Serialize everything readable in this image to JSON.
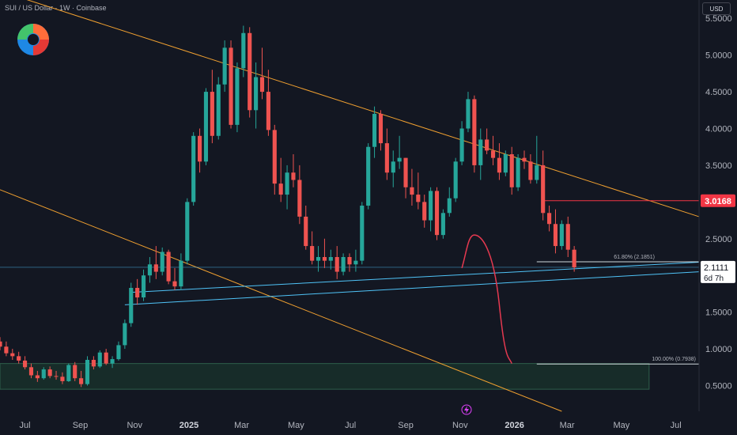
{
  "header": {
    "symbol": "SUI / US Dollar · 1W · Coinbase"
  },
  "currency_button": "USD",
  "logo_icon": "sui-logo-icon",
  "event_icon": "lightning-icon",
  "colors": {
    "bg": "#131722",
    "up": "#26a69a",
    "down": "#ef5350",
    "trend": "#f0a030",
    "support": "#4fc3f7",
    "fib": "#cfd8dc",
    "zone_fill": "#1b3a2e",
    "zone_border": "#2e5e4a",
    "projection": "#e53950",
    "marker": "#f23645"
  },
  "price_labels": {
    "marker": "3.0168",
    "last": "2.1111",
    "countdown": "6d 7h"
  },
  "fib_labels": {
    "f618": "61.80% (2.1851)",
    "f100": "100.00% (0.7938)"
  },
  "chart_data": {
    "type": "candlestick",
    "title": "",
    "yaxis": {
      "ticks": [
        "5.5000",
        "5.0000",
        "4.5000",
        "4.0000",
        "3.5000",
        "3.0000",
        "2.5000",
        "2.0000",
        "1.5000",
        "1.0000",
        "0.5000"
      ],
      "range": [
        0.15,
        5.75
      ]
    },
    "xaxis": {
      "ticks": [
        "Jul",
        "Sep",
        "Nov",
        "2025",
        "Mar",
        "May",
        "Jul",
        "Sep",
        "Nov",
        "2026",
        "Mar",
        "May",
        "Jul"
      ],
      "range": [
        "2024-06-03",
        "2026-07-27"
      ]
    },
    "start_date": "2024-06-03",
    "interval_days": 7,
    "candles": [
      [
        1.1,
        1.16,
        0.98,
        1.03
      ],
      [
        1.03,
        1.1,
        0.9,
        0.94
      ],
      [
        0.94,
        1.0,
        0.85,
        0.9
      ],
      [
        0.9,
        0.96,
        0.8,
        0.84
      ],
      [
        0.84,
        0.9,
        0.72,
        0.75
      ],
      [
        0.75,
        0.8,
        0.6,
        0.64
      ],
      [
        0.64,
        0.7,
        0.55,
        0.6
      ],
      [
        0.6,
        0.75,
        0.58,
        0.72
      ],
      [
        0.72,
        0.76,
        0.6,
        0.63
      ],
      [
        0.63,
        0.7,
        0.58,
        0.62
      ],
      [
        0.62,
        0.68,
        0.52,
        0.56
      ],
      [
        0.56,
        0.8,
        0.55,
        0.78
      ],
      [
        0.78,
        0.82,
        0.56,
        0.6
      ],
      [
        0.6,
        0.7,
        0.48,
        0.52
      ],
      [
        0.52,
        0.9,
        0.5,
        0.85
      ],
      [
        0.85,
        0.9,
        0.72,
        0.76
      ],
      [
        0.76,
        0.98,
        0.74,
        0.95
      ],
      [
        0.95,
        1.0,
        0.78,
        0.8
      ],
      [
        0.8,
        0.9,
        0.74,
        0.86
      ],
      [
        0.86,
        1.1,
        0.84,
        1.05
      ],
      [
        1.05,
        1.4,
        1.0,
        1.35
      ],
      [
        1.35,
        1.9,
        1.3,
        1.83
      ],
      [
        1.83,
        1.95,
        1.6,
        1.7
      ],
      [
        1.7,
        2.08,
        1.65,
        2.0
      ],
      [
        2.0,
        2.25,
        1.9,
        2.15
      ],
      [
        2.15,
        2.4,
        1.95,
        2.05
      ],
      [
        2.05,
        2.38,
        2.0,
        2.32
      ],
      [
        2.32,
        2.35,
        1.88,
        1.92
      ],
      [
        1.92,
        2.1,
        1.8,
        1.85
      ],
      [
        1.85,
        2.3,
        1.8,
        2.2
      ],
      [
        2.2,
        3.05,
        2.15,
        3.0
      ],
      [
        3.0,
        3.95,
        2.95,
        3.9
      ],
      [
        3.9,
        4.0,
        3.4,
        3.55
      ],
      [
        3.55,
        4.55,
        3.5,
        4.5
      ],
      [
        4.5,
        4.8,
        3.8,
        3.9
      ],
      [
        3.9,
        4.7,
        3.85,
        4.6
      ],
      [
        4.6,
        5.2,
        4.5,
        5.1
      ],
      [
        5.1,
        5.2,
        4.0,
        4.05
      ],
      [
        4.05,
        4.9,
        3.95,
        4.82
      ],
      [
        4.82,
        5.4,
        4.7,
        5.3
      ],
      [
        5.3,
        5.38,
        4.15,
        4.25
      ],
      [
        4.25,
        4.9,
        4.0,
        4.7
      ],
      [
        4.7,
        5.1,
        4.4,
        4.5
      ],
      [
        4.5,
        4.8,
        3.9,
        3.98
      ],
      [
        3.98,
        4.05,
        3.1,
        3.25
      ],
      [
        3.25,
        3.6,
        3.0,
        3.1
      ],
      [
        3.1,
        3.5,
        2.9,
        3.4
      ],
      [
        3.4,
        3.65,
        3.2,
        3.3
      ],
      [
        3.3,
        3.5,
        2.7,
        2.8
      ],
      [
        2.8,
        2.95,
        2.35,
        2.4
      ],
      [
        2.4,
        2.6,
        2.15,
        2.2
      ],
      [
        2.2,
        2.4,
        2.05,
        2.25
      ],
      [
        2.25,
        2.5,
        2.1,
        2.2
      ],
      [
        2.2,
        2.35,
        2.08,
        2.25
      ],
      [
        2.25,
        2.4,
        1.95,
        2.05
      ],
      [
        2.05,
        2.3,
        2.0,
        2.25
      ],
      [
        2.25,
        2.3,
        2.05,
        2.15
      ],
      [
        2.15,
        2.35,
        2.05,
        2.2
      ],
      [
        2.2,
        3.0,
        2.15,
        2.95
      ],
      [
        2.95,
        3.8,
        2.9,
        3.75
      ],
      [
        3.75,
        4.3,
        3.6,
        4.2
      ],
      [
        4.2,
        4.25,
        3.7,
        3.8
      ],
      [
        3.8,
        4.0,
        3.3,
        3.4
      ],
      [
        3.4,
        3.7,
        3.2,
        3.55
      ],
      [
        3.55,
        3.9,
        3.45,
        3.6
      ],
      [
        3.6,
        3.6,
        3.05,
        3.2
      ],
      [
        3.2,
        3.45,
        2.95,
        3.1
      ],
      [
        3.1,
        3.4,
        2.9,
        3.0
      ],
      [
        3.0,
        3.1,
        2.65,
        2.75
      ],
      [
        2.75,
        3.2,
        2.6,
        3.15
      ],
      [
        3.15,
        3.2,
        2.48,
        2.55
      ],
      [
        2.55,
        2.9,
        2.5,
        2.85
      ],
      [
        2.85,
        3.2,
        2.8,
        3.05
      ],
      [
        3.05,
        3.6,
        3.0,
        3.55
      ],
      [
        3.55,
        4.1,
        3.5,
        4.0
      ],
      [
        4.0,
        4.5,
        3.95,
        4.4
      ],
      [
        4.4,
        4.45,
        3.4,
        3.5
      ],
      [
        3.5,
        4.0,
        3.3,
        3.85
      ],
      [
        3.85,
        4.0,
        3.65,
        3.7
      ],
      [
        3.7,
        3.9,
        3.5,
        3.6
      ],
      [
        3.6,
        3.8,
        3.3,
        3.4
      ],
      [
        3.4,
        3.7,
        3.35,
        3.65
      ],
      [
        3.65,
        3.75,
        3.1,
        3.2
      ],
      [
        3.2,
        3.65,
        3.15,
        3.6
      ],
      [
        3.6,
        3.7,
        3.45,
        3.55
      ],
      [
        3.55,
        3.65,
        3.25,
        3.3
      ],
      [
        3.3,
        3.9,
        3.25,
        3.5
      ],
      [
        3.5,
        3.7,
        2.75,
        2.85
      ],
      [
        2.85,
        2.95,
        2.6,
        2.7
      ],
      [
        2.7,
        2.9,
        2.3,
        2.4
      ],
      [
        2.4,
        2.75,
        2.35,
        2.7
      ],
      [
        2.7,
        2.8,
        2.25,
        2.35
      ],
      [
        2.35,
        2.4,
        2.05,
        2.11
      ]
    ],
    "trendlines": {
      "upper": [
        [
          "2024-05-27",
          5.9
        ],
        [
          "2026-07-27",
          2.8
        ]
      ],
      "lower": [
        [
          "2024-05-27",
          3.2
        ],
        [
          "2026-02-23",
          0.15
        ]
      ]
    },
    "support_lines": [
      [
        [
          "2024-10-28",
          1.77
        ],
        [
          "2026-07-27",
          2.18
        ]
      ],
      [
        [
          "2024-10-21",
          1.6
        ],
        [
          "2026-07-27",
          2.05
        ]
      ]
    ],
    "horizontal_levels": {
      "marker": 3.0168,
      "fib_618": 2.1851,
      "fib_100": 0.7938,
      "last": 2.1111
    },
    "demand_zone": {
      "from": "2024-06-03",
      "to": "2026-06-01",
      "top": 0.8,
      "bottom": 0.45
    },
    "projection": [
      [
        "2025-11-03",
        2.1
      ],
      [
        "2025-11-17",
        2.55
      ],
      [
        "2025-12-01",
        2.4
      ],
      [
        "2025-12-15",
        1.6
      ],
      [
        "2025-12-29",
        0.8
      ]
    ]
  }
}
